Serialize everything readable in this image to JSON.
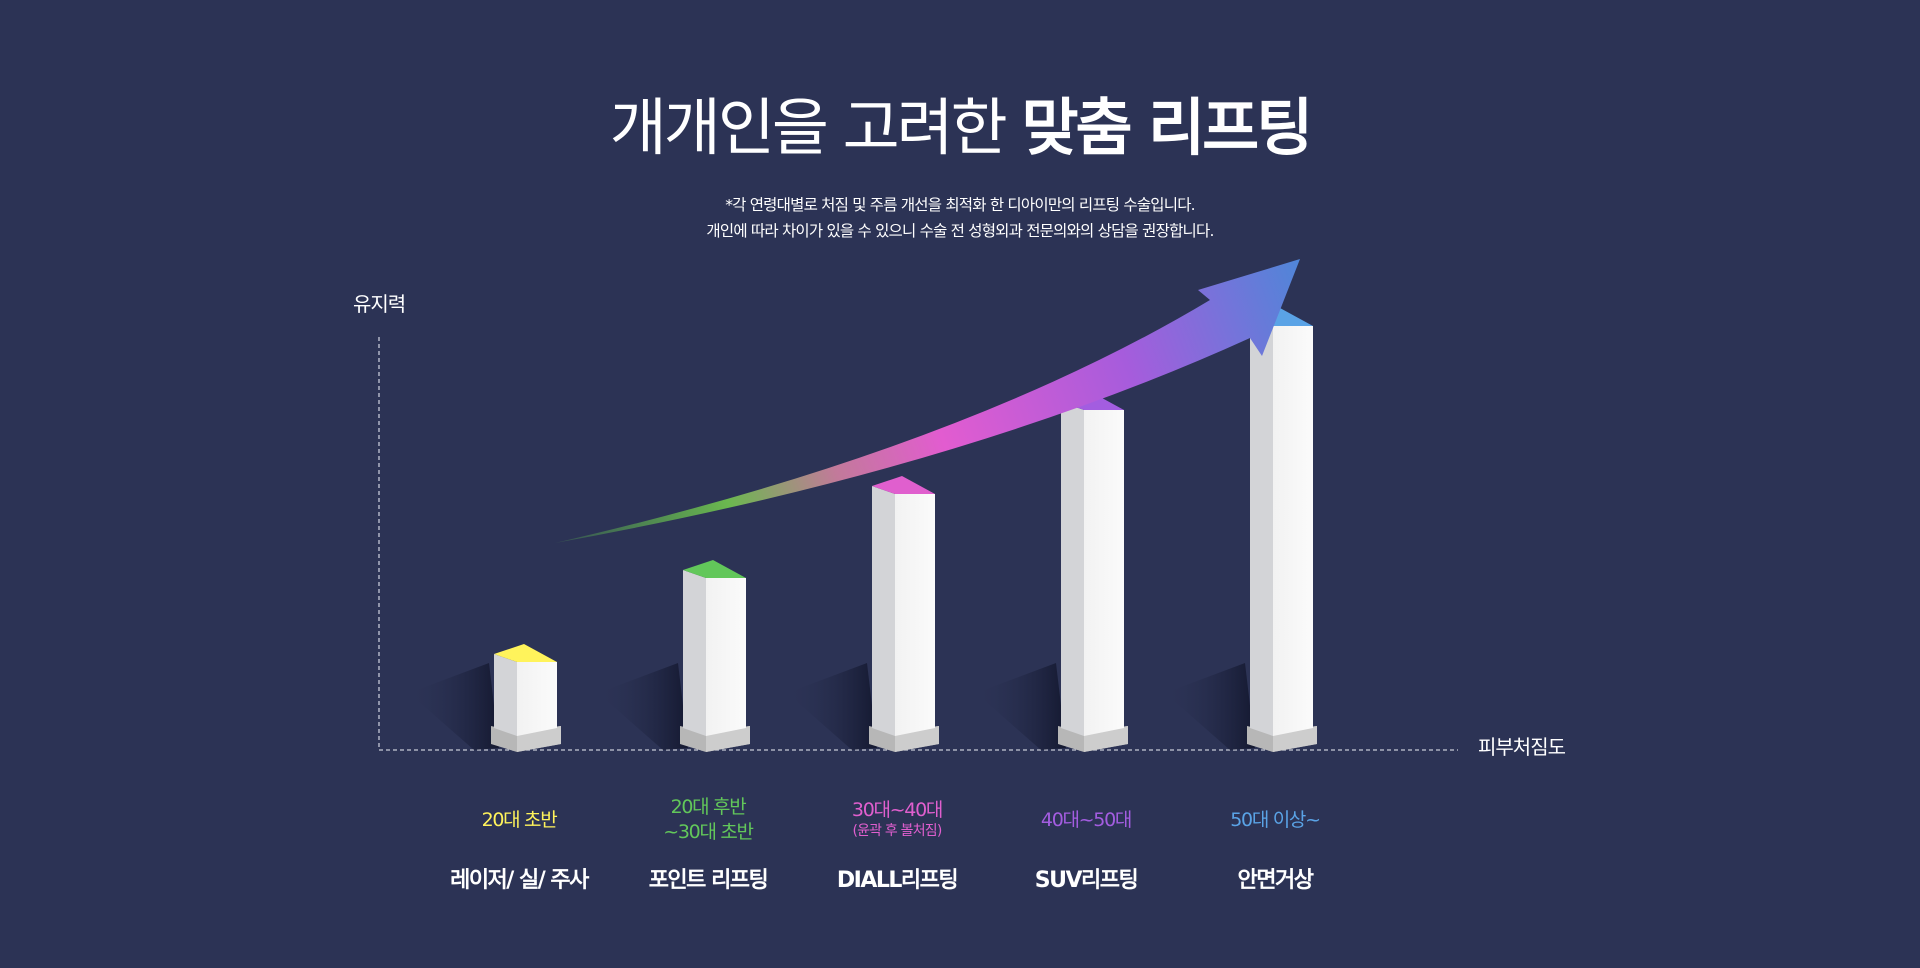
{
  "header": {
    "title_light": "개개인을 고려한",
    "title_bold": "맞춤 리프팅",
    "note_line1": "*각 연령대별로 처짐 및 주름 개선을 최적화 한 디아이만의 리프팅 수술입니다.",
    "note_line2": "개인에 따라 차이가 있을 수 있으니 수술 전 성형외과 전문의와의 상담을 권장합니다."
  },
  "axes": {
    "y_label": "유지력",
    "x_label": "피부처짐도"
  },
  "chart_data": {
    "type": "bar",
    "ylabel": "유지력",
    "xlabel": "피부처짐도",
    "categories": [
      "레이저/ 실/ 주사",
      "포인트 리프팅",
      "DIALL리프팅",
      "SUV리프팅",
      "안면거상"
    ],
    "values": [
      1,
      2,
      3,
      4,
      5
    ],
    "ylim": [
      0,
      5.4
    ]
  },
  "stages": [
    {
      "age": "20대 초반",
      "age2": "",
      "note": "",
      "procedure": "레이저/ 실/ 주사",
      "color": "#fff35b"
    },
    {
      "age": "20대 후반",
      "age2": "~30대 초반",
      "note": "",
      "procedure": "포인트 리프팅",
      "color": "#62c75a"
    },
    {
      "age": "30대~40대",
      "age2": "",
      "note": "(윤곽 후 볼처짐)",
      "procedure": "DIALL리프팅",
      "color": "#e05fce"
    },
    {
      "age": "40대~50대",
      "age2": "",
      "note": "",
      "procedure": "SUV리프팅",
      "color": "#a35de0"
    },
    {
      "age": "50대 이상~",
      "age2": "",
      "note": "",
      "procedure": "안면거상",
      "color": "#5aa3e6"
    }
  ],
  "colors": {
    "background": "#2c3355",
    "arrow_start": "#5ec04f",
    "arrow_mid": "#e25cd0",
    "arrow_end": "#4f86d8"
  }
}
